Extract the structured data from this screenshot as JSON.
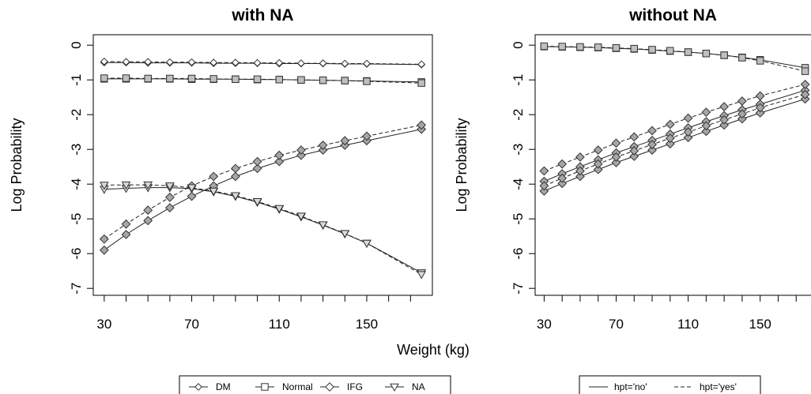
{
  "figure": {
    "shared_xlabel": "Weight (kg)"
  },
  "chart_data": [
    {
      "type": "line",
      "title": "with NA",
      "xlabel": "",
      "ylabel": "Log Probability",
      "xlim": [
        25,
        180
      ],
      "ylim": [
        -7.2,
        0.3
      ],
      "xticks": [
        30,
        70,
        110,
        150
      ],
      "yticks": [
        0,
        -1,
        -2,
        -3,
        -4,
        -5,
        -6,
        -7
      ],
      "x": [
        30,
        40,
        50,
        60,
        70,
        80,
        90,
        100,
        110,
        120,
        130,
        140,
        150,
        175
      ],
      "legend": {
        "placement": "bottom",
        "entries": [
          {
            "label": "DM",
            "marker": "circle"
          },
          {
            "label": "Normal",
            "marker": "square"
          },
          {
            "label": "IFG",
            "marker": "diamond"
          },
          {
            "label": "NA",
            "marker": "triangle-down"
          }
        ]
      },
      "series": [
        {
          "name": "DM",
          "hpt": "no",
          "marker": "circle",
          "fill": "#ffffff",
          "dash": false,
          "values": [
            -0.5,
            -0.5,
            -0.51,
            -0.51,
            -0.51,
            -0.52,
            -0.52,
            -0.52,
            -0.53,
            -0.53,
            -0.53,
            -0.54,
            -0.54,
            -0.56
          ]
        },
        {
          "name": "DM",
          "hpt": "yes",
          "marker": "circle",
          "fill": "#ffffff",
          "dash": true,
          "values": [
            -0.47,
            -0.48,
            -0.48,
            -0.49,
            -0.49,
            -0.5,
            -0.5,
            -0.51,
            -0.51,
            -0.52,
            -0.52,
            -0.53,
            -0.53,
            -0.55
          ]
        },
        {
          "name": "Normal",
          "hpt": "no",
          "marker": "square",
          "fill": "#bfbfbf",
          "dash": false,
          "values": [
            -0.97,
            -0.97,
            -0.97,
            -0.97,
            -0.98,
            -0.98,
            -0.98,
            -0.99,
            -0.99,
            -1.0,
            -1.01,
            -1.02,
            -1.03,
            -1.06
          ]
        },
        {
          "name": "Normal",
          "hpt": "yes",
          "marker": "square",
          "fill": "#bfbfbf",
          "dash": true,
          "values": [
            -0.95,
            -0.95,
            -0.96,
            -0.96,
            -0.96,
            -0.97,
            -0.98,
            -0.98,
            -0.99,
            -1.0,
            -1.01,
            -1.02,
            -1.04,
            -1.09
          ]
        },
        {
          "name": "IFG",
          "hpt": "no",
          "marker": "diamond",
          "fill": "#a6a6a6",
          "dash": false,
          "values": [
            -5.9,
            -5.45,
            -5.05,
            -4.68,
            -4.35,
            -4.05,
            -3.78,
            -3.55,
            -3.35,
            -3.17,
            -3.02,
            -2.88,
            -2.75,
            -2.42
          ]
        },
        {
          "name": "IFG",
          "hpt": "yes",
          "marker": "diamond",
          "fill": "#a6a6a6",
          "dash": true,
          "values": [
            -5.58,
            -5.15,
            -4.75,
            -4.38,
            -4.05,
            -3.78,
            -3.55,
            -3.35,
            -3.17,
            -3.02,
            -2.88,
            -2.75,
            -2.62,
            -2.3
          ]
        },
        {
          "name": "NA",
          "hpt": "no",
          "marker": "triangle-down",
          "fill": "#d9d9d9",
          "dash": false,
          "values": [
            -4.15,
            -4.12,
            -4.1,
            -4.1,
            -4.13,
            -4.22,
            -4.35,
            -4.52,
            -4.72,
            -4.94,
            -5.18,
            -5.43,
            -5.7,
            -6.55
          ]
        },
        {
          "name": "NA",
          "hpt": "yes",
          "marker": "triangle-down",
          "fill": "#d9d9d9",
          "dash": true,
          "values": [
            -4.03,
            -4.02,
            -4.02,
            -4.05,
            -4.1,
            -4.2,
            -4.33,
            -4.5,
            -4.7,
            -4.92,
            -5.17,
            -5.42,
            -5.7,
            -6.6
          ]
        }
      ]
    },
    {
      "type": "line",
      "title": "without NA",
      "xlabel": "",
      "ylabel": "Log Probability",
      "xlim": [
        25,
        180
      ],
      "ylim": [
        -7.2,
        0.3
      ],
      "xticks": [
        30,
        70,
        110,
        150
      ],
      "yticks": [
        0,
        -1,
        -2,
        -3,
        -4,
        -5,
        -6,
        -7
      ],
      "x": [
        30,
        40,
        50,
        60,
        70,
        80,
        90,
        100,
        110,
        120,
        130,
        140,
        150,
        175
      ],
      "legend": {
        "placement": "bottom",
        "entries": [
          {
            "label": "hpt='no'",
            "dash": false
          },
          {
            "label": "hpt='yes'",
            "dash": true
          }
        ]
      },
      "series": [
        {
          "name": "Normal",
          "hpt": "no",
          "marker": "square",
          "fill": "#bfbfbf",
          "dash": false,
          "values": [
            -0.04,
            -0.05,
            -0.06,
            -0.07,
            -0.09,
            -0.11,
            -0.14,
            -0.17,
            -0.2,
            -0.24,
            -0.29,
            -0.35,
            -0.42,
            -0.65
          ]
        },
        {
          "name": "Normal",
          "hpt": "yes",
          "marker": "square",
          "fill": "#bfbfbf",
          "dash": true,
          "values": [
            -0.03,
            -0.04,
            -0.05,
            -0.06,
            -0.08,
            -0.1,
            -0.13,
            -0.16,
            -0.2,
            -0.24,
            -0.29,
            -0.36,
            -0.45,
            -0.75
          ]
        },
        {
          "name": "IFG",
          "hpt": "no",
          "marker": "diamond",
          "fill": "#a6a6a6",
          "dash": false,
          "values": [
            -4.2,
            -3.98,
            -3.78,
            -3.58,
            -3.38,
            -3.2,
            -3.02,
            -2.84,
            -2.66,
            -2.48,
            -2.3,
            -2.12,
            -1.95,
            -1.55
          ]
        },
        {
          "name": "IFG",
          "hpt": "no",
          "marker": "diamond",
          "fill": "#a6a6a6",
          "dash": false,
          "values": [
            -3.92,
            -3.7,
            -3.5,
            -3.3,
            -3.1,
            -2.92,
            -2.74,
            -2.56,
            -2.38,
            -2.2,
            -2.03,
            -1.86,
            -1.7,
            -1.3
          ]
        },
        {
          "name": "IFG",
          "hpt": "yes",
          "marker": "diamond",
          "fill": "#a6a6a6",
          "dash": true,
          "values": [
            -4.05,
            -3.83,
            -3.62,
            -3.42,
            -3.22,
            -3.04,
            -2.86,
            -2.68,
            -2.5,
            -2.32,
            -2.15,
            -1.98,
            -1.8,
            -1.42
          ]
        },
        {
          "name": "IFG",
          "hpt": "yes",
          "marker": "diamond",
          "fill": "#a6a6a6",
          "dash": true,
          "values": [
            -3.62,
            -3.42,
            -3.22,
            -3.02,
            -2.82,
            -2.64,
            -2.46,
            -2.28,
            -2.1,
            -1.93,
            -1.77,
            -1.61,
            -1.46,
            -1.13
          ]
        }
      ]
    }
  ]
}
